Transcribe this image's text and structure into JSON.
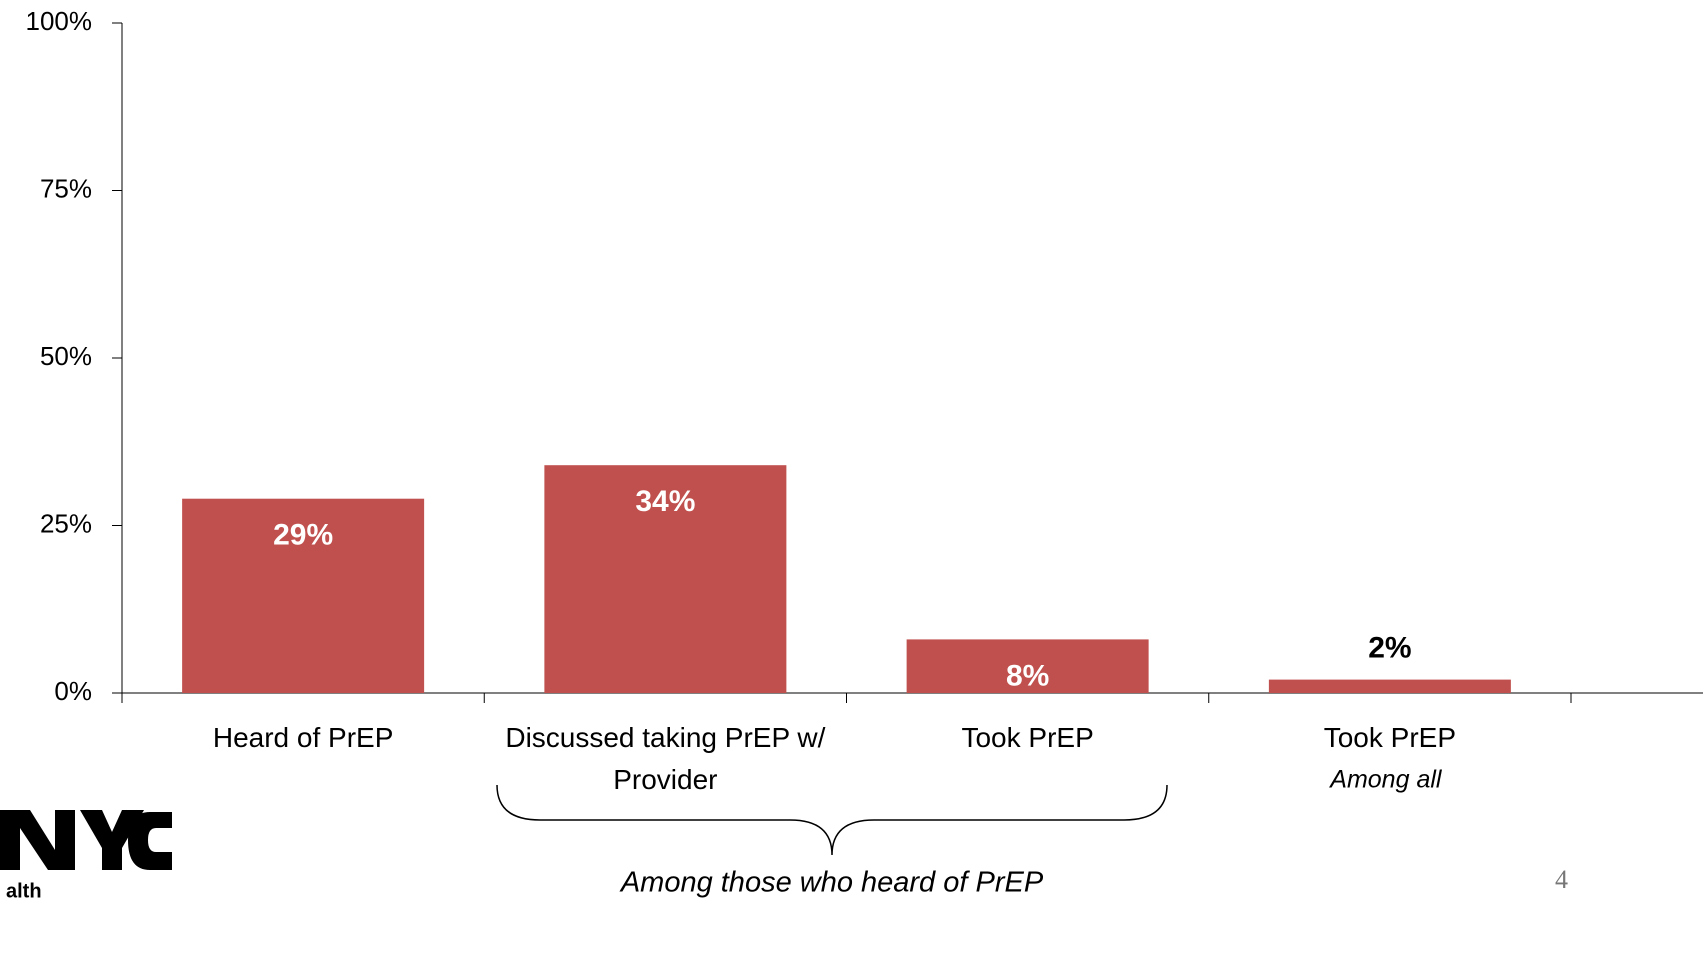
{
  "chart_data": {
    "type": "bar",
    "categories": [
      "Heard of PrEP",
      "Discussed taking PrEP w/ Provider",
      "Took PrEP",
      "Took PrEP"
    ],
    "values": [
      29,
      34,
      8,
      2
    ],
    "value_labels": [
      "29%",
      "34%",
      "8%",
      "2%"
    ],
    "color": "#c0504d",
    "ylim": [
      0,
      100
    ],
    "yticks": [
      {
        "value": 0,
        "label": "0%"
      },
      {
        "value": 25,
        "label": "25%"
      },
      {
        "value": 50,
        "label": "50%"
      },
      {
        "value": 75,
        "label": "75%"
      },
      {
        "value": 100,
        "label": "100%"
      }
    ],
    "grid": false,
    "annotations": [
      {
        "text": "Among all"
      },
      {
        "text": "Among those who heard of PrEP"
      }
    ]
  },
  "logo_text": "alth",
  "page_number": "4"
}
